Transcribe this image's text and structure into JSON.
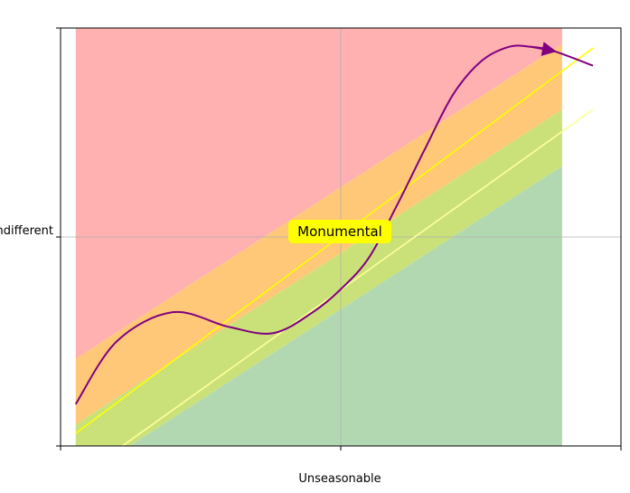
{
  "chart_data": {
    "type": "area",
    "xlabel": "Unseasonable",
    "ylabel": "",
    "xlim": [
      0,
      1
    ],
    "ylim": [
      0,
      1
    ],
    "x_ticks": [
      0,
      0.5,
      1
    ],
    "y_ticks": [
      0,
      0.5,
      1
    ],
    "x_tick_labels": [
      "",
      "",
      ""
    ],
    "y_tick_labels": [
      "",
      "Indifferent",
      ""
    ],
    "grid": true,
    "zones": [
      {
        "color": "#ffb0b0",
        "lower": "above upper band",
        "x": [
          0.027,
          0.895
        ]
      },
      {
        "color": "#ffc878",
        "lower_intercept": 0.028,
        "upper_intercept": 0.185,
        "slope": 0.868
      },
      {
        "color": "#cae17a",
        "lower_intercept": -0.107,
        "upper_intercept": 0.028,
        "slope": 0.868
      },
      {
        "color": "#b2d8b2",
        "lower": 0,
        "upper_intercept": -0.107,
        "slope": 0.868
      }
    ],
    "lines": [
      {
        "color": "#ffff00",
        "x": [
          0.027,
          0.95
        ],
        "y": [
          0.03,
          0.952
        ]
      },
      {
        "color": "#ffff99",
        "x": [
          0.027,
          0.95
        ],
        "y": [
          -0.08,
          0.805
        ]
      }
    ],
    "curve": {
      "color": "#800080",
      "x": [
        0.027,
        0.1,
        0.2,
        0.3,
        0.38,
        0.45,
        0.5,
        0.55,
        0.6,
        0.65,
        0.7,
        0.75,
        0.8,
        0.84,
        0.88,
        0.95
      ],
      "y": [
        0.1,
        0.25,
        0.32,
        0.285,
        0.27,
        0.32,
        0.375,
        0.45,
        0.575,
        0.71,
        0.84,
        0.92,
        0.955,
        0.955,
        0.945,
        0.91
      ]
    },
    "annotation": {
      "text": "Monumental",
      "x": 0.5,
      "y": 0.5,
      "background": "#ffff00"
    }
  }
}
